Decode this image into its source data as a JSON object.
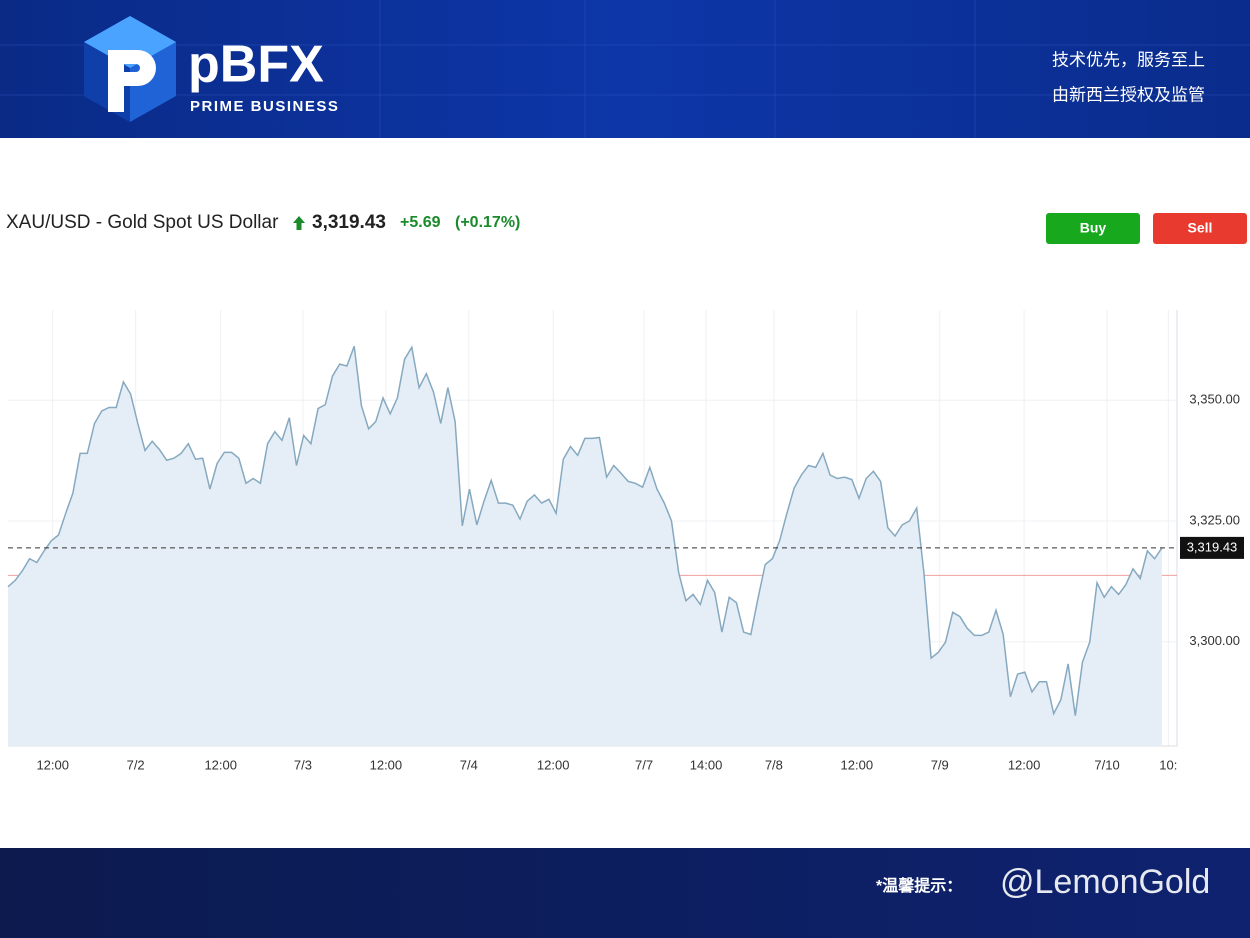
{
  "header": {
    "logo_text": "pBFX",
    "logo_subtitle": "PRIME BUSINESS",
    "slogans": [
      "技术优先，服务至上",
      "由新西兰授权及监管"
    ]
  },
  "quote": {
    "symbol": "XAU/USD - Gold Spot US Dollar",
    "price": "3,319.43",
    "change": "+5.69",
    "change_pct": "(+0.17%)"
  },
  "buttons": [
    "Buy",
    "Sell"
  ],
  "footer": {
    "note": "*温馨提示：",
    "watermark": "@LemonGold"
  },
  "chart_data": {
    "type": "line",
    "grid": true,
    "series": [
      {
        "color": "#86a9c0",
        "fill": "#e5eef6",
        "values": [
          3311.4,
          3312.7,
          3314.7,
          3317.2,
          3316.4,
          3318.8,
          3320.9,
          3322.1,
          3326.6,
          3330.8,
          3339.0,
          3339.0,
          3345.2,
          3347.8,
          3348.5,
          3348.5,
          3353.8,
          3351.3,
          3345.2,
          3339.6,
          3341.5,
          3339.8,
          3337.6,
          3338.0,
          3339.0,
          3341.0,
          3337.8,
          3338.0,
          3331.6,
          3336.9,
          3339.2,
          3339.2,
          3338.0,
          3332.8,
          3333.8,
          3332.8,
          3341.0,
          3343.5,
          3341.7,
          3346.4,
          3336.5,
          3342.7,
          3341.0,
          3348.3,
          3349.1,
          3355.0,
          3357.5,
          3357.1,
          3361.2,
          3348.9,
          3344.1,
          3345.6,
          3350.5,
          3347.2,
          3350.5,
          3358.5,
          3361.0,
          3352.6,
          3355.5,
          3351.7,
          3345.2,
          3352.6,
          3345.6,
          3324.0,
          3331.6,
          3324.2,
          3329.1,
          3333.4,
          3328.7,
          3328.7,
          3328.3,
          3325.4,
          3329.1,
          3330.4,
          3328.7,
          3329.5,
          3326.6,
          3337.8,
          3340.4,
          3338.6,
          3342.1,
          3342.1,
          3342.3,
          3334.1,
          3336.5,
          3334.9,
          3333.2,
          3332.8,
          3332.0,
          3336.1,
          3331.6,
          3328.7,
          3325.0,
          3314.3,
          3308.5,
          3309.8,
          3307.7,
          3312.7,
          3310.2,
          3302.0,
          3309.2,
          3308.1,
          3302.0,
          3301.5,
          3309.0,
          3316.0,
          3317.2,
          3320.9,
          3326.6,
          3331.8,
          3334.5,
          3336.5,
          3336.1,
          3339.0,
          3334.5,
          3333.8,
          3334.1,
          3333.6,
          3329.7,
          3333.8,
          3335.3,
          3333.2,
          3323.6,
          3321.9,
          3324.2,
          3325.0,
          3327.7,
          3314.3,
          3296.6,
          3297.8,
          3299.9,
          3306.1,
          3305.2,
          3302.8,
          3301.3,
          3301.3,
          3302.0,
          3306.5,
          3301.5,
          3288.6,
          3293.3,
          3293.7,
          3289.6,
          3291.7,
          3291.7,
          3285.1,
          3288.0,
          3295.4,
          3284.7,
          3295.8,
          3299.9,
          3312.2,
          3309.2,
          3311.4,
          3309.8,
          3311.8,
          3315.1,
          3313.1,
          3318.8,
          3317.2,
          3319.43
        ]
      }
    ],
    "reference_line": {
      "value": 3313.74,
      "color": "#f0a0a0"
    },
    "xlim": [
      0,
      162.1
    ],
    "xticks": [
      {
        "value": 6.2,
        "label": "12:00"
      },
      {
        "value": 17.7,
        "label": "7/2"
      },
      {
        "value": 29.5,
        "label": "12:00"
      },
      {
        "value": 40.9,
        "label": "7/3"
      },
      {
        "value": 52.4,
        "label": "12:00"
      },
      {
        "value": 63.9,
        "label": "7/4"
      },
      {
        "value": 75.6,
        "label": "12:00"
      },
      {
        "value": 88.2,
        "label": "7/7"
      },
      {
        "value": 96.8,
        "label": "14:00"
      },
      {
        "value": 106.2,
        "label": "7/8"
      },
      {
        "value": 117.7,
        "label": "12:00"
      },
      {
        "value": 129.2,
        "label": "7/9"
      },
      {
        "value": 140.9,
        "label": "12:00"
      },
      {
        "value": 152.4,
        "label": "7/10"
      },
      {
        "value": 160.9,
        "label": "10:"
      }
    ],
    "ylim": [
      3278.4,
      3368.7
    ],
    "yticks": [
      {
        "value": 3300,
        "label": "3,300.00"
      },
      {
        "value": 3325,
        "label": "3,325.00"
      },
      {
        "value": 3350,
        "label": "3,350.00"
      }
    ]
  }
}
